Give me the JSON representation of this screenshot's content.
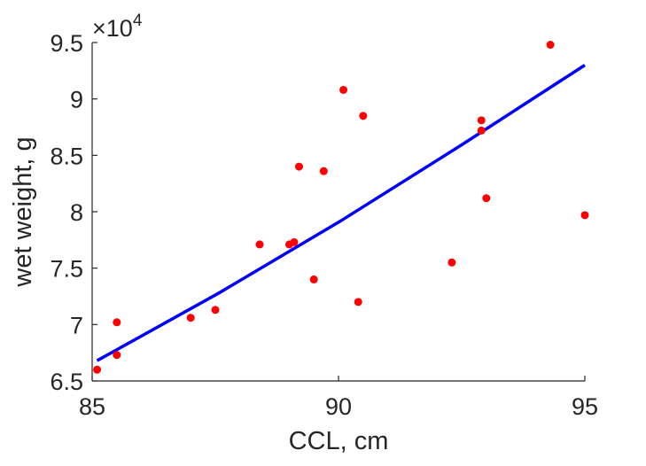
{
  "chart_data": {
    "type": "scatter",
    "title": "",
    "xlabel": "CCL, cm",
    "ylabel": "wet weight, g",
    "y_multiplier_label": {
      "base": "×10",
      "exponent": "4"
    },
    "xlim": [
      85,
      95
    ],
    "ylim": [
      6.5,
      9.5
    ],
    "y_scale_factor": 10000,
    "x_ticks": [
      85,
      90,
      95
    ],
    "x_tick_labels": [
      "85",
      "90",
      "95"
    ],
    "y_ticks": [
      6.5,
      7,
      7.5,
      8,
      8.5,
      9,
      9.5
    ],
    "y_tick_labels": [
      "6.5",
      "7",
      "7.5",
      "8",
      "8.5",
      "9",
      "9.5"
    ],
    "grid": false,
    "series": [
      {
        "type": "scatter",
        "color": "#ff0000",
        "points": [
          {
            "x": 85.1,
            "y": 6.6
          },
          {
            "x": 85.5,
            "y": 6.73
          },
          {
            "x": 85.5,
            "y": 7.02
          },
          {
            "x": 87.0,
            "y": 7.06
          },
          {
            "x": 87.5,
            "y": 7.13
          },
          {
            "x": 88.4,
            "y": 7.71
          },
          {
            "x": 89.0,
            "y": 7.71
          },
          {
            "x": 89.1,
            "y": 7.73
          },
          {
            "x": 89.2,
            "y": 8.4
          },
          {
            "x": 89.5,
            "y": 7.4
          },
          {
            "x": 89.7,
            "y": 8.36
          },
          {
            "x": 90.1,
            "y": 9.08
          },
          {
            "x": 90.4,
            "y": 7.2
          },
          {
            "x": 90.5,
            "y": 8.85
          },
          {
            "x": 92.3,
            "y": 7.55
          },
          {
            "x": 92.9,
            "y": 8.81
          },
          {
            "x": 92.9,
            "y": 8.72
          },
          {
            "x": 93.0,
            "y": 8.12
          },
          {
            "x": 94.3,
            "y": 9.48
          },
          {
            "x": 95.0,
            "y": 7.97
          }
        ]
      },
      {
        "type": "line",
        "color": "#0000ff",
        "points": [
          {
            "x": 85.1,
            "y": 6.68
          },
          {
            "x": 87.575,
            "y": 7.28
          },
          {
            "x": 90.05,
            "y": 7.92
          },
          {
            "x": 92.525,
            "y": 8.6
          },
          {
            "x": 95.0,
            "y": 9.3
          }
        ]
      }
    ]
  }
}
